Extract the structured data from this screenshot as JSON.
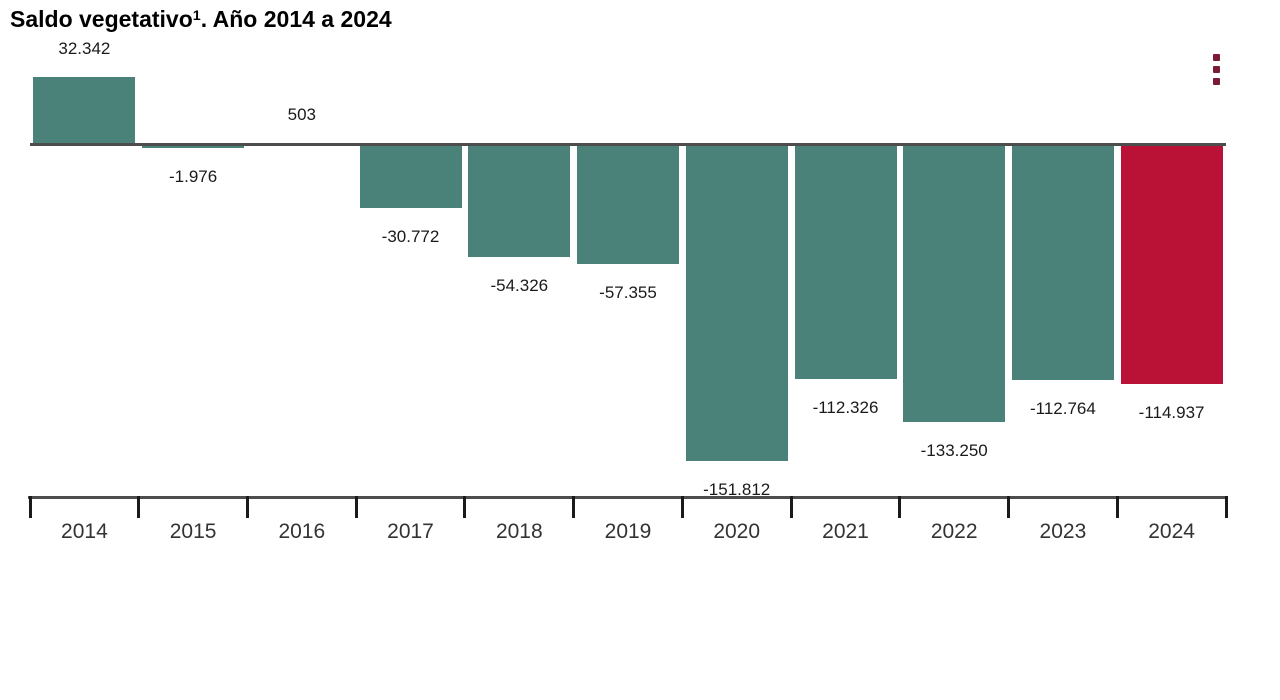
{
  "title": {
    "main": "Saldo vegetativo",
    "superscript": "1",
    "rest": ". Año 2014 a 2024"
  },
  "menu": {
    "icon": "kebab-menu-icon",
    "color": "#7A1C33"
  },
  "colors": {
    "bar_default": "#4A8179",
    "bar_highlight": "#B91236",
    "zero_line": "#4D4D4D",
    "axis_line": "#4D4D4D",
    "tick": "#1A1A1A",
    "value_label": "#1A1A1A",
    "year_label": "#333333",
    "background": "#FFFFFF"
  },
  "chart_data": {
    "type": "bar",
    "title": "Saldo vegetativo¹. Año 2014 a 2024",
    "series_name": "Saldo vegetativo",
    "categories": [
      "2014",
      "2015",
      "2016",
      "2017",
      "2018",
      "2019",
      "2020",
      "2021",
      "2022",
      "2023",
      "2024"
    ],
    "values": [
      32342,
      -1976,
      503,
      -30772,
      -54326,
      -57355,
      -151812,
      -112326,
      -133250,
      -112764,
      -114937
    ],
    "value_labels": [
      "32.342",
      "-1.976",
      "503",
      "-30.772",
      "-54.326",
      "-57.355",
      "-151.812",
      "-112.326",
      "-133.250",
      "-112.764",
      "-114.937"
    ],
    "highlight_category": "2024",
    "highlight_index": 10,
    "xlabel": "",
    "ylabel": "",
    "ylim": [
      -160000,
      40000
    ],
    "grid": false,
    "legend": false,
    "zero_baseline": true
  }
}
